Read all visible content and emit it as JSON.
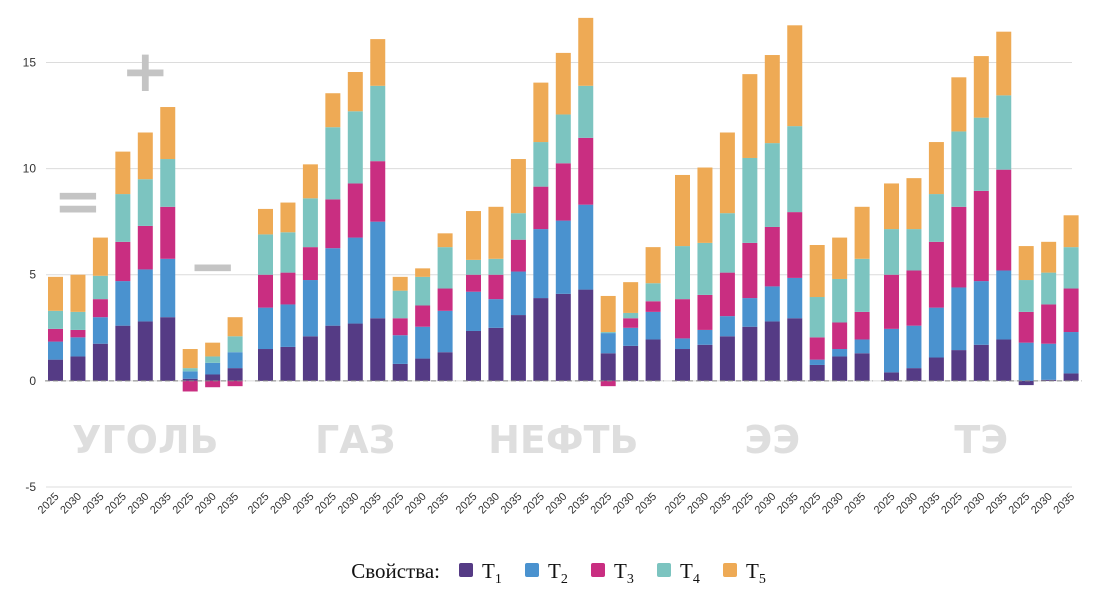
{
  "chart_data": {
    "type": "bar",
    "stacked": true,
    "ylim": [
      -5,
      17
    ],
    "yticks": [
      -5,
      0,
      5,
      10,
      15
    ],
    "grid": true,
    "legend_position": "bottom",
    "legend_title": "Свойства:",
    "series": [
      {
        "name": "T",
        "subscript": "1",
        "color": "#553b85"
      },
      {
        "name": "T",
        "subscript": "2",
        "color": "#4a92cf"
      },
      {
        "name": "T",
        "subscript": "3",
        "color": "#c92e81"
      },
      {
        "name": "T",
        "subscript": "4",
        "color": "#7cc4c0"
      },
      {
        "name": "T",
        "subscript": "5",
        "color": "#eeaa55"
      }
    ],
    "symbols": [
      {
        "text": "=",
        "group": 0,
        "subgroup": 0
      },
      {
        "text": "+",
        "group": 0,
        "subgroup": 1
      },
      {
        "text": "−",
        "group": 0,
        "subgroup": 2
      }
    ],
    "groups": [
      {
        "label": "УГОЛЬ",
        "bars": [
          {
            "x": "2025",
            "values": [
              1.0,
              0.85,
              0.6,
              0.85,
              1.6
            ]
          },
          {
            "x": "2030",
            "values": [
              1.15,
              0.9,
              0.35,
              0.85,
              1.75
            ]
          },
          {
            "x": "2035",
            "values": [
              1.75,
              1.25,
              0.85,
              1.1,
              1.8
            ]
          },
          {
            "x": "2025",
            "values": [
              2.6,
              2.1,
              1.85,
              2.25,
              2.0
            ]
          },
          {
            "x": "2030",
            "values": [
              2.8,
              2.45,
              2.05,
              2.2,
              2.2
            ]
          },
          {
            "x": "2035",
            "values": [
              3.0,
              2.75,
              2.45,
              2.25,
              2.45
            ]
          },
          {
            "x": "2025",
            "values": [
              0.1,
              0.35,
              -0.5,
              0.15,
              0.9
            ]
          },
          {
            "x": "2030",
            "values": [
              0.3,
              0.55,
              -0.3,
              0.3,
              0.65
            ]
          },
          {
            "x": "2035",
            "values": [
              0.6,
              0.75,
              -0.25,
              0.75,
              0.9
            ]
          }
        ]
      },
      {
        "label": "ГАЗ",
        "bars": [
          {
            "x": "2025",
            "values": [
              1.5,
              1.95,
              1.55,
              1.9,
              1.2
            ]
          },
          {
            "x": "2030",
            "values": [
              1.6,
              2.0,
              1.5,
              1.9,
              1.4
            ]
          },
          {
            "x": "2035",
            "values": [
              2.1,
              2.65,
              1.55,
              2.3,
              1.6
            ]
          },
          {
            "x": "2025",
            "values": [
              2.6,
              3.65,
              2.3,
              3.4,
              1.6
            ]
          },
          {
            "x": "2030",
            "values": [
              2.7,
              4.05,
              2.55,
              3.4,
              1.85
            ]
          },
          {
            "x": "2035",
            "values": [
              2.95,
              4.55,
              2.85,
              3.55,
              2.2
            ]
          },
          {
            "x": "2025",
            "values": [
              0.8,
              1.35,
              0.8,
              1.3,
              0.65
            ]
          },
          {
            "x": "2030",
            "values": [
              1.05,
              1.5,
              1.0,
              1.35,
              0.4
            ]
          },
          {
            "x": "2035",
            "values": [
              1.35,
              1.95,
              1.05,
              1.95,
              0.65
            ]
          }
        ]
      },
      {
        "label": "НЕФТЬ",
        "bars": [
          {
            "x": "2025",
            "values": [
              2.35,
              1.85,
              0.8,
              0.7,
              2.3
            ]
          },
          {
            "x": "2030",
            "values": [
              2.5,
              1.35,
              1.15,
              0.75,
              2.45
            ]
          },
          {
            "x": "2035",
            "values": [
              3.1,
              2.05,
              1.5,
              1.25,
              2.55
            ]
          },
          {
            "x": "2025",
            "values": [
              3.9,
              3.25,
              2.0,
              2.1,
              2.8
            ]
          },
          {
            "x": "2030",
            "values": [
              4.1,
              3.45,
              2.7,
              2.3,
              2.9
            ]
          },
          {
            "x": "2035",
            "values": [
              4.3,
              4.0,
              3.15,
              2.45,
              3.2
            ]
          },
          {
            "x": "2025",
            "values": [
              1.3,
              0.95,
              -0.25,
              0.05,
              1.7
            ]
          },
          {
            "x": "2030",
            "values": [
              1.65,
              0.85,
              0.45,
              0.25,
              1.45
            ]
          },
          {
            "x": "2035",
            "values": [
              1.95,
              1.3,
              0.5,
              0.85,
              1.7
            ]
          }
        ]
      },
      {
        "label": "ЭЭ",
        "bars": [
          {
            "x": "2025",
            "values": [
              1.5,
              0.5,
              1.85,
              2.5,
              3.35
            ]
          },
          {
            "x": "2030",
            "values": [
              1.7,
              0.7,
              1.65,
              2.45,
              3.55
            ]
          },
          {
            "x": "2035",
            "values": [
              2.1,
              0.95,
              2.05,
              2.8,
              3.8
            ]
          },
          {
            "x": "2025",
            "values": [
              2.55,
              1.35,
              2.6,
              4.0,
              3.95
            ]
          },
          {
            "x": "2030",
            "values": [
              2.8,
              1.65,
              2.8,
              3.95,
              4.15
            ]
          },
          {
            "x": "2035",
            "values": [
              2.95,
              1.9,
              3.1,
              4.05,
              4.75
            ]
          },
          {
            "x": "2025",
            "values": [
              0.75,
              0.25,
              1.05,
              1.9,
              2.45
            ]
          },
          {
            "x": "2030",
            "values": [
              1.15,
              0.35,
              1.25,
              2.05,
              1.95
            ]
          },
          {
            "x": "2035",
            "values": [
              1.3,
              0.65,
              1.3,
              2.5,
              2.45
            ]
          }
        ]
      },
      {
        "label": "ТЭ",
        "bars": [
          {
            "x": "2025",
            "values": [
              0.4,
              2.05,
              2.55,
              2.15,
              2.15
            ]
          },
          {
            "x": "2030",
            "values": [
              0.6,
              2.0,
              2.6,
              1.95,
              2.4
            ]
          },
          {
            "x": "2035",
            "values": [
              1.1,
              2.35,
              3.1,
              2.25,
              2.45
            ]
          },
          {
            "x": "2025",
            "values": [
              1.45,
              2.95,
              3.8,
              3.55,
              2.55
            ]
          },
          {
            "x": "2030",
            "values": [
              1.7,
              3.0,
              4.25,
              3.45,
              2.9
            ]
          },
          {
            "x": "2035",
            "values": [
              1.95,
              3.25,
              4.75,
              3.5,
              3.0
            ]
          },
          {
            "x": "2025",
            "values": [
              -0.2,
              1.8,
              1.45,
              1.5,
              1.6
            ]
          },
          {
            "x": "2030",
            "values": [
              0.05,
              1.7,
              1.85,
              1.5,
              1.45
            ]
          },
          {
            "x": "2035",
            "values": [
              0.35,
              1.95,
              2.05,
              1.95,
              1.5
            ]
          }
        ]
      }
    ]
  }
}
